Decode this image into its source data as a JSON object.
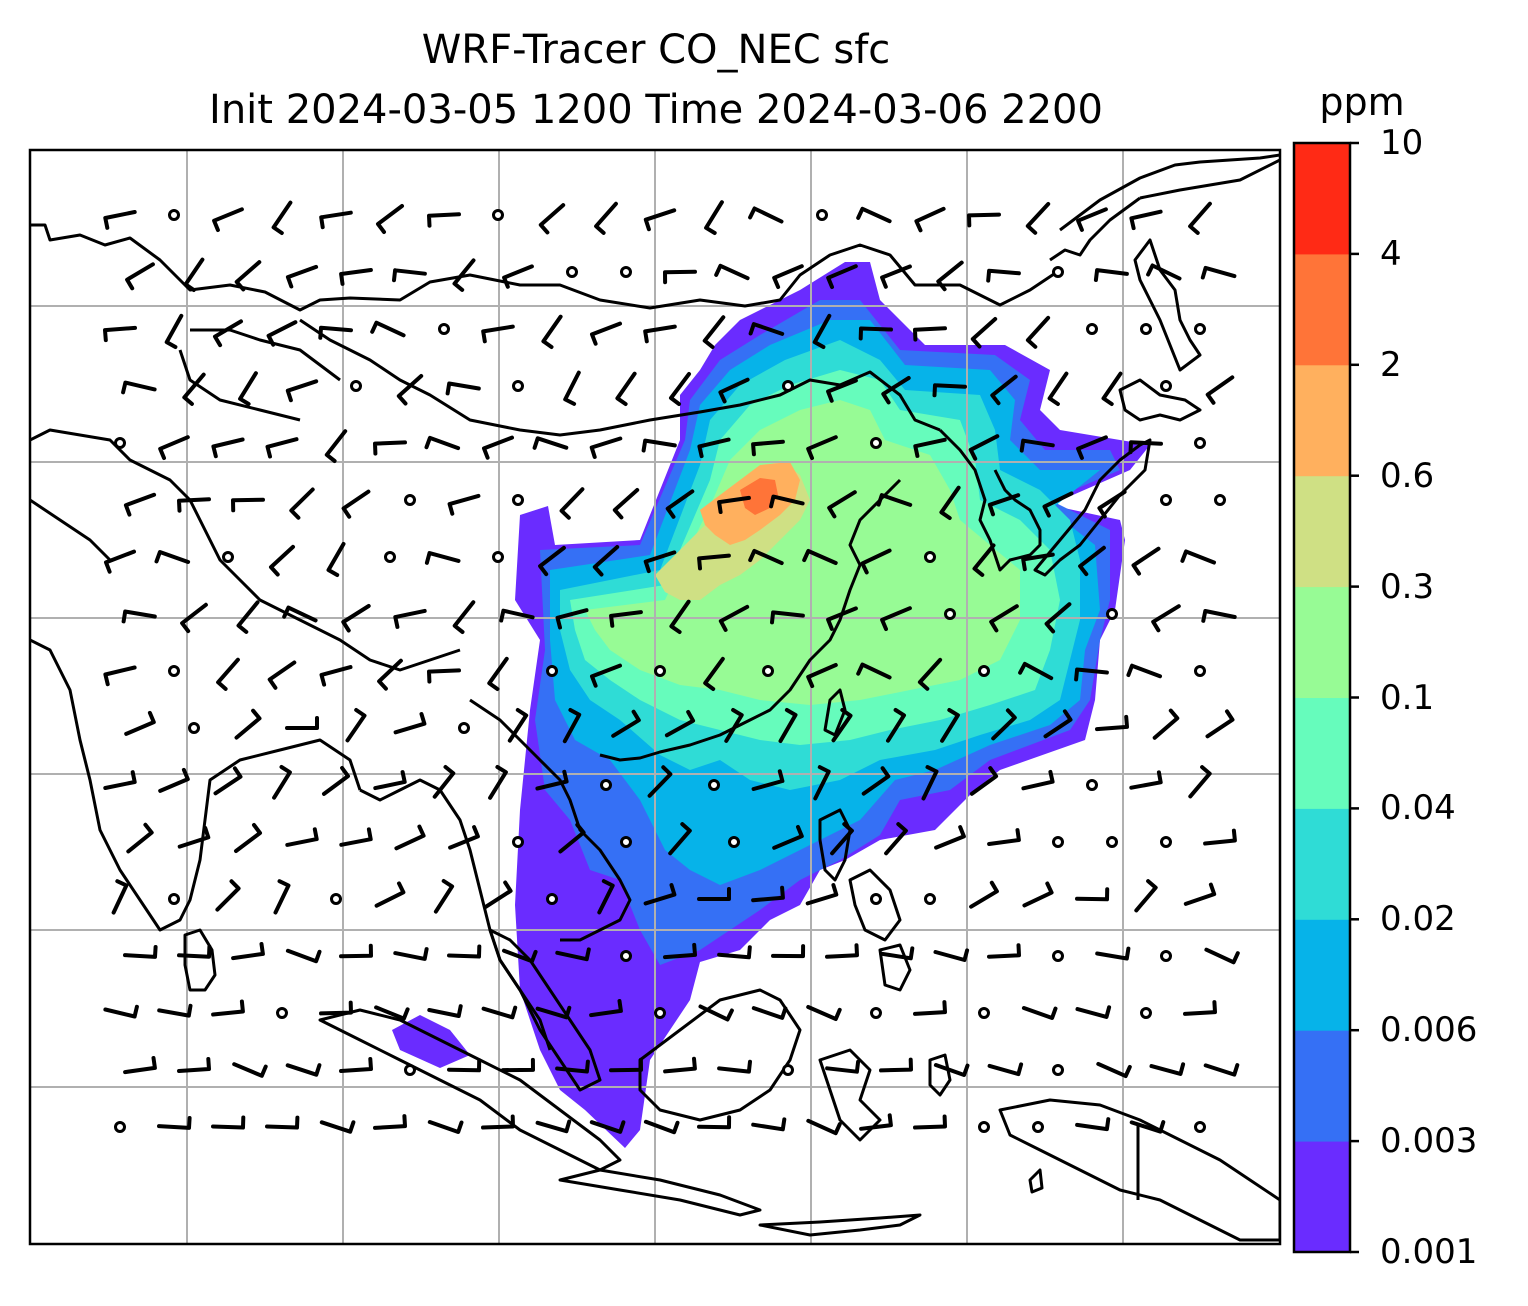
{
  "title": {
    "line1": "WRF-Tracer CO_NEC sfc",
    "line2": "Init 2024-03-05 1200 Time 2024-03-06 2200"
  },
  "map": {
    "projection": "lat-lon",
    "gridlines": true,
    "coastlines": true,
    "borders": true,
    "field": "surface CO tracer concentration (filled contours) with wind barbs"
  },
  "colorbar": {
    "unit": "ppm",
    "levels": [
      "0.001",
      "0.003",
      "0.006",
      "0.02",
      "0.04",
      "0.1",
      "0.3",
      "0.6",
      "2",
      "4",
      "10"
    ],
    "colors": [
      "#6a2cff",
      "#3570f5",
      "#06b3e9",
      "#2fdcd6",
      "#66fcbc",
      "#97fb95",
      "#cfe084",
      "#ffb05e",
      "#ff7438",
      "#ff2a15"
    ]
  }
}
